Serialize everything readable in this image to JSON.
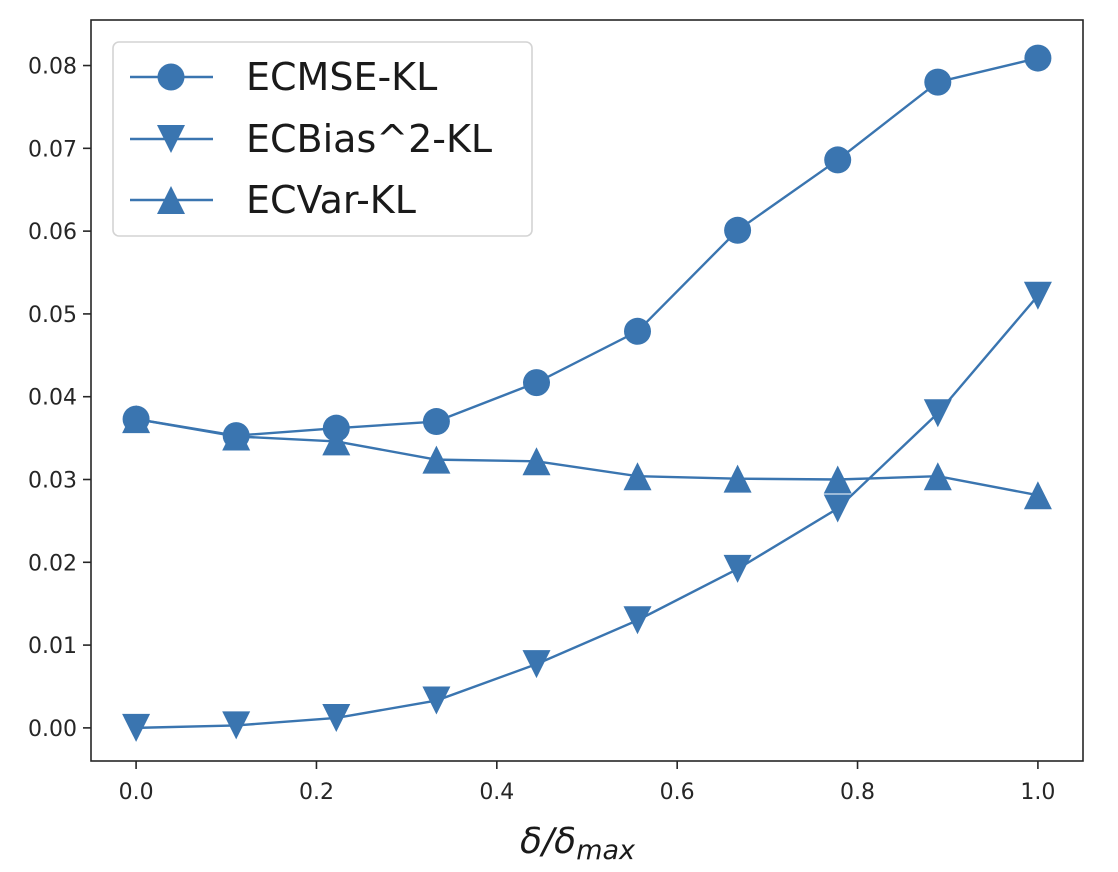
{
  "chart_data": {
    "type": "line",
    "title": "",
    "xlabel": "δ/δ",
    "xlabel_sub": "max",
    "ylabel": "",
    "x": [
      0.0,
      0.111,
      0.222,
      0.333,
      0.444,
      0.556,
      0.667,
      0.778,
      0.889,
      1.0
    ],
    "xlim": [
      -0.05,
      1.05
    ],
    "ylim": [
      -0.004,
      0.0855
    ],
    "xticks": [
      0.0,
      0.2,
      0.4,
      0.6,
      0.8,
      1.0
    ],
    "xtick_labels": [
      "0.0",
      "0.2",
      "0.4",
      "0.6",
      "0.8",
      "1.0"
    ],
    "yticks": [
      0.0,
      0.01,
      0.02,
      0.03,
      0.04,
      0.05,
      0.06,
      0.07,
      0.08
    ],
    "ytick_labels": [
      "0.00",
      "0.01",
      "0.02",
      "0.03",
      "0.04",
      "0.05",
      "0.06",
      "0.07",
      "0.08"
    ],
    "grid": false,
    "legend_position": "top-left",
    "series": [
      {
        "name": "ECMSE-KL",
        "marker": "circle",
        "values": [
          0.0373,
          0.0353,
          0.0362,
          0.037,
          0.0417,
          0.0479,
          0.0601,
          0.0686,
          0.078,
          0.0809
        ]
      },
      {
        "name": "ECBias^2-KL",
        "marker": "triangle-down",
        "values": [
          0.0,
          0.0003,
          0.0012,
          0.0033,
          0.0077,
          0.013,
          0.0192,
          0.0265,
          0.038,
          0.0522
        ]
      },
      {
        "name": "ECVar-KL",
        "marker": "triangle-up",
        "values": [
          0.0373,
          0.0352,
          0.0346,
          0.0324,
          0.0322,
          0.0304,
          0.0301,
          0.03,
          0.0304,
          0.0281
        ]
      }
    ],
    "colors": {
      "series": "#3a75b0",
      "axis": "#262626",
      "legend_border": "#d4d4d4"
    }
  }
}
